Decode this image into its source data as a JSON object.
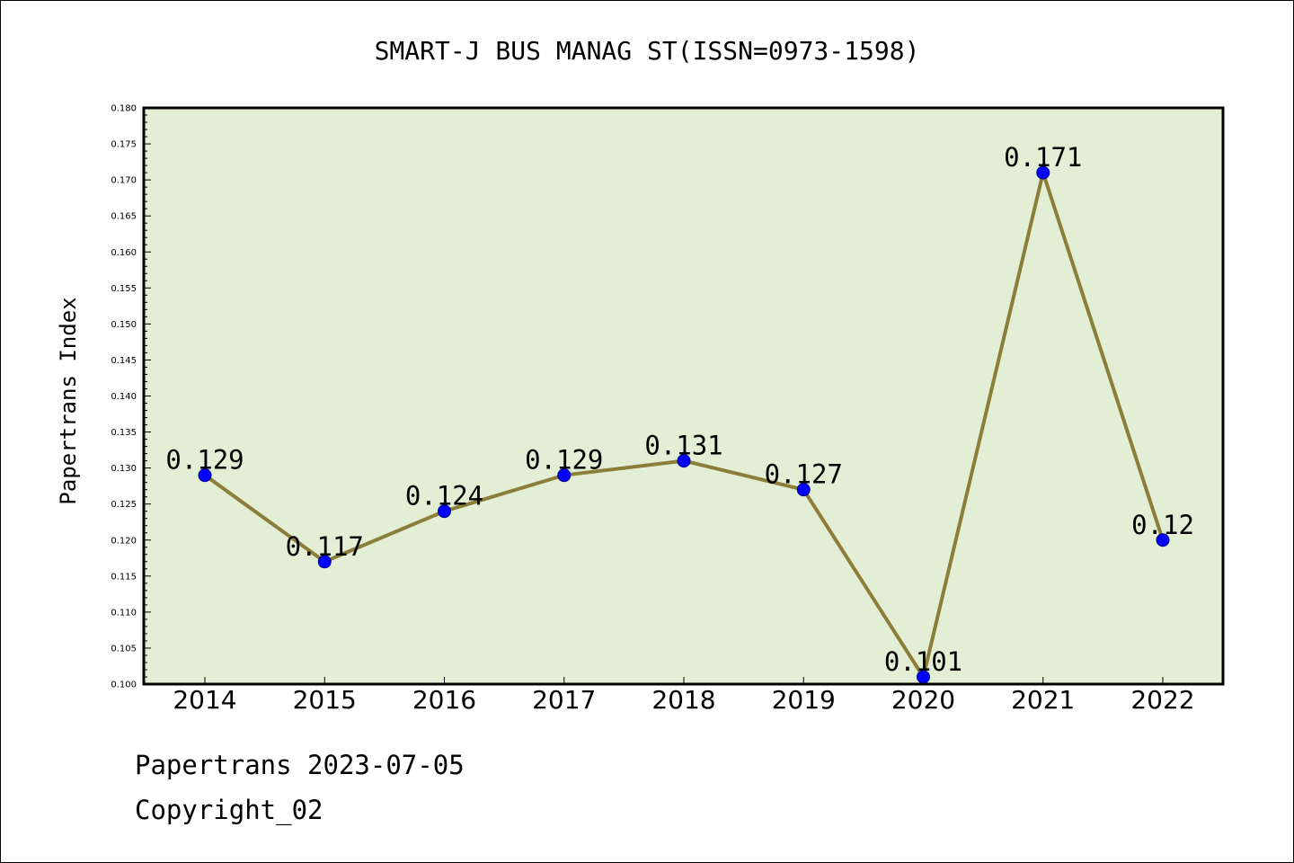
{
  "chart_data": {
    "type": "line",
    "title": "SMART-J BUS MANAG ST(ISSN=0973-1598)",
    "xlabel": "",
    "ylabel": "Papertrans Index",
    "categories": [
      "2014",
      "2015",
      "2016",
      "2017",
      "2018",
      "2019",
      "2020",
      "2021",
      "2022"
    ],
    "series": [
      {
        "values": [
          0.129,
          0.117,
          0.124,
          0.129,
          0.131,
          0.127,
          0.101,
          0.171,
          0.12
        ],
        "labels": [
          "0.129",
          "0.117",
          "0.124",
          "0.129",
          "0.131",
          "0.127",
          "0.101",
          "0.171",
          "0.12"
        ]
      }
    ],
    "ylim": [
      0.1,
      0.18
    ],
    "ytick_step": 0.005,
    "ytick_labels": [
      "0.100",
      "0.105",
      "0.110",
      "0.115",
      "0.120",
      "0.125",
      "0.130",
      "0.135",
      "0.140",
      "0.145",
      "0.150",
      "0.155",
      "0.160",
      "0.165",
      "0.170",
      "0.175",
      "0.180"
    ],
    "grid": false,
    "legend": "none",
    "colors": {
      "plot_background": "#e2efd4",
      "line": "#8c7d3a",
      "marker": "#0000ff",
      "marker_edge": "#00008b",
      "axes": "#000000"
    }
  },
  "footer": {
    "date_line": "Papertrans 2023-07-05",
    "copyright": "Copyright_02"
  }
}
